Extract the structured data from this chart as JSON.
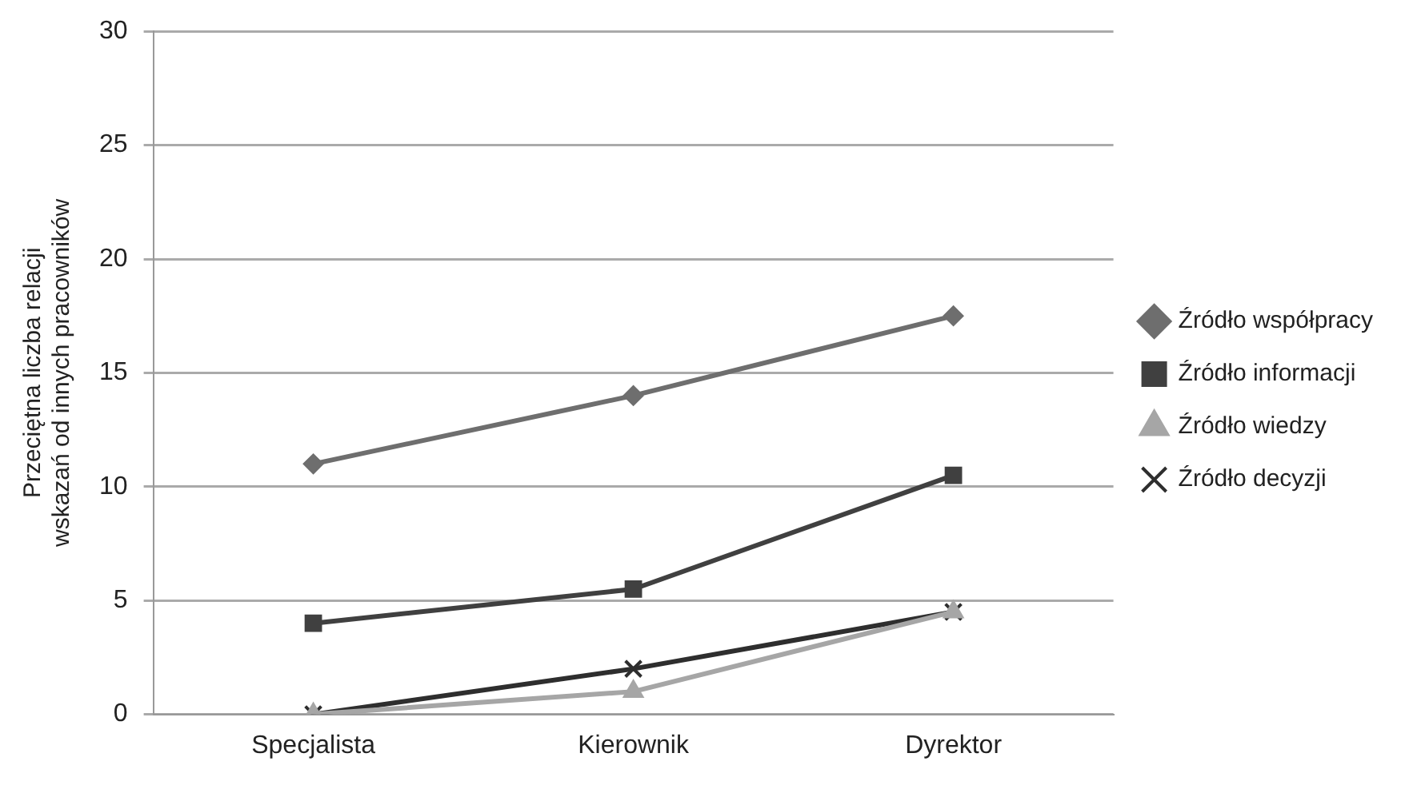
{
  "chart_data": {
    "type": "line",
    "ylabel": "Przeciętna liczba relacji\nwskazań od innych pracowników",
    "categories": [
      "Specjalista",
      "Kierownik",
      "Dyrektor"
    ],
    "ylim": [
      0,
      30
    ],
    "yticks": [
      0,
      5,
      10,
      15,
      20,
      25,
      30
    ],
    "grid": "y",
    "legend": "right",
    "series": [
      {
        "name": "Źródło współpracy",
        "color": "#6e6e6e",
        "marker": "diamond",
        "values": [
          11,
          14,
          17.5
        ]
      },
      {
        "name": "Źródło informacji",
        "color": "#404040",
        "marker": "square",
        "values": [
          4,
          5.5,
          10.5
        ]
      },
      {
        "name": "Źródło wiedzy",
        "color": "#a6a6a6",
        "marker": "triangle",
        "values": [
          0,
          1,
          4.5
        ]
      },
      {
        "name": "Źródło decyzji",
        "color": "#2e2e2e",
        "marker": "cross",
        "values": [
          0,
          2,
          4.5
        ]
      }
    ]
  }
}
